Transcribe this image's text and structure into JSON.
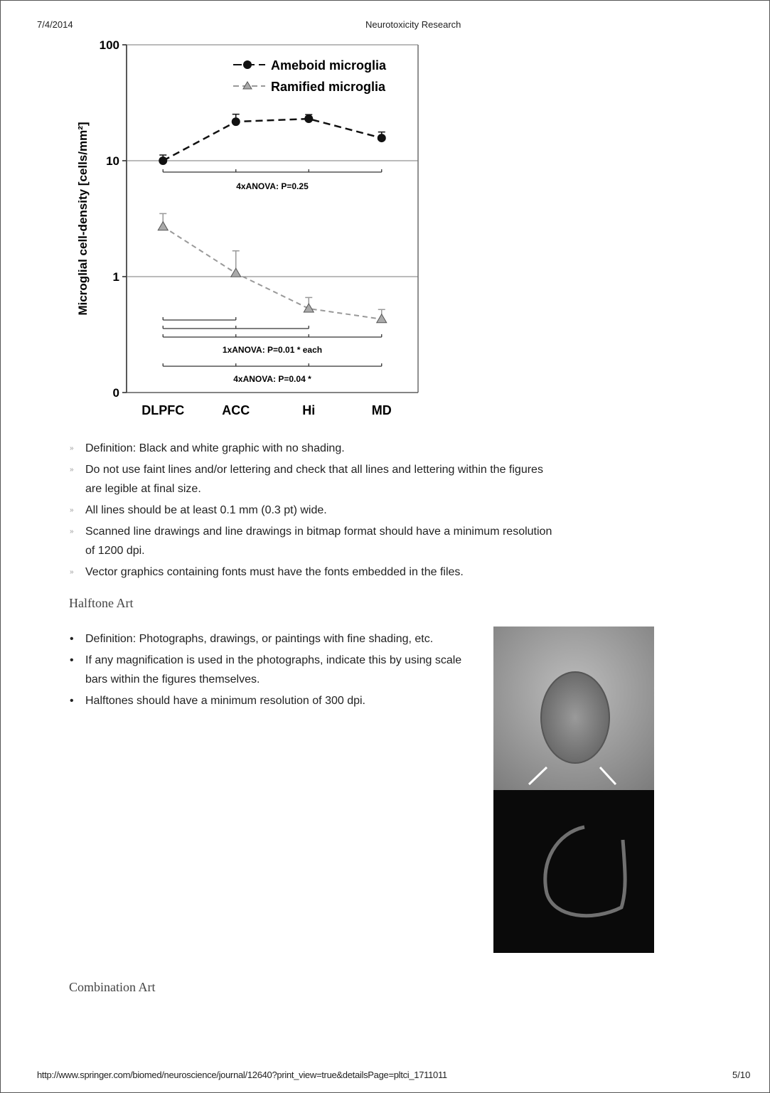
{
  "header": {
    "date": "7/4/2014",
    "title": "Neurotoxicity Research"
  },
  "chart_data": {
    "type": "line",
    "y_label": "Microglial cell-density [cells/mm²]",
    "categories": [
      "DLPFC",
      "ACC",
      "Hi",
      "MD"
    ],
    "series": [
      {
        "name": "Ameboid microglia",
        "color": "#111111",
        "marker": "circle",
        "values": [
          10,
          21.7,
          23,
          15.7
        ],
        "errors": [
          1.2,
          3.5,
          2,
          2
        ]
      },
      {
        "name": "Ramified microglia",
        "color": "#999999",
        "marker": "triangle",
        "values": [
          2.7,
          1.07,
          0.53,
          0.43
        ],
        "errors": [
          0.8,
          0.6,
          0.13,
          0.09
        ]
      }
    ],
    "log_scale": true,
    "ylim": [
      0.1,
      100
    ],
    "yticks": [
      {
        "value": 0.1,
        "label": "0"
      },
      1,
      10,
      100
    ],
    "grid": true,
    "annotations": [
      "4xANOVA: P=0.25",
      "1xANOVA: P=0.01 * each",
      "4xANOVA: P=0.04 *"
    ]
  },
  "line_art_list": [
    "Definition: Black and white graphic with no shading.",
    "Do not use faint lines and/or lettering and check that all lines and lettering within the figures are legible at final size.",
    "All lines should be at least 0.1 mm (0.3 pt) wide.",
    "Scanned line drawings and line drawings in bitmap format should have a minimum resolution of 1200 dpi.",
    "Vector graphics containing fonts must have the fonts embedded in the files."
  ],
  "halftone": {
    "heading": "Halftone Art",
    "items": [
      "Definition: Photographs, drawings, or paintings with fine shading, etc.",
      "If any magnification is used in the photographs, indicate this by using scale bars within the figures themselves.",
      "Halftones should have a minimum resolution of 300 dpi."
    ]
  },
  "combination": {
    "heading": "Combination Art"
  },
  "footer": {
    "url": "http://www.springer.com/biomed/neuroscience/journal/12640?print_view=true&detailsPage=pltci_1711011",
    "page": "5/10"
  }
}
